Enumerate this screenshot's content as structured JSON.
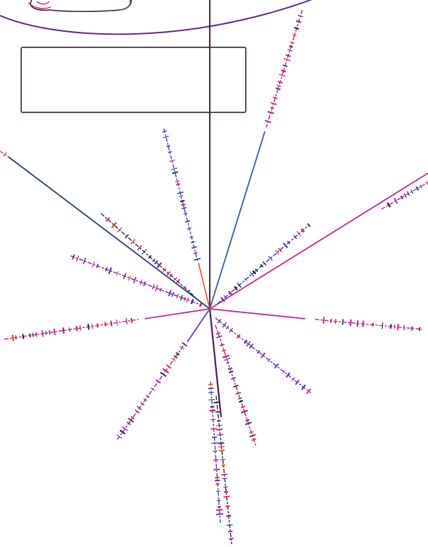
{
  "colors": {
    "background": "#ffffff",
    "frame_stroke": "#5a4a4f",
    "arc_stroke": "#5b2a86",
    "vertical_line": "#4a1a5a",
    "palette": [
      "#c2185b",
      "#3949ab",
      "#1b2a3a",
      "#7b1fa2",
      "#d81b60",
      "#e64a19",
      "#283593",
      "#9c27b0",
      "#e91e63",
      "#5e35b1"
    ]
  },
  "icons": {
    "corner_doodle": "pulsar-plaque-figure-icon"
  },
  "figure": {
    "type": "pulsar-map",
    "rays": [
      {
        "name": "ray-upper-right-long",
        "color": "#2b5bb5"
      },
      {
        "name": "ray-upper-left-long",
        "color": "#1f3f6e"
      },
      {
        "name": "ray-far-right",
        "color": "#c0288a"
      },
      {
        "name": "ray-right",
        "color": "#c0288a"
      },
      {
        "name": "ray-left",
        "color": "#c0288a"
      },
      {
        "name": "ray-down",
        "color": "#4a1a5a"
      },
      {
        "name": "ray-down-left",
        "color": "#7c4fb0"
      },
      {
        "name": "ray-up-short",
        "color": "#e0562b"
      }
    ],
    "text_box": "",
    "labels": []
  }
}
